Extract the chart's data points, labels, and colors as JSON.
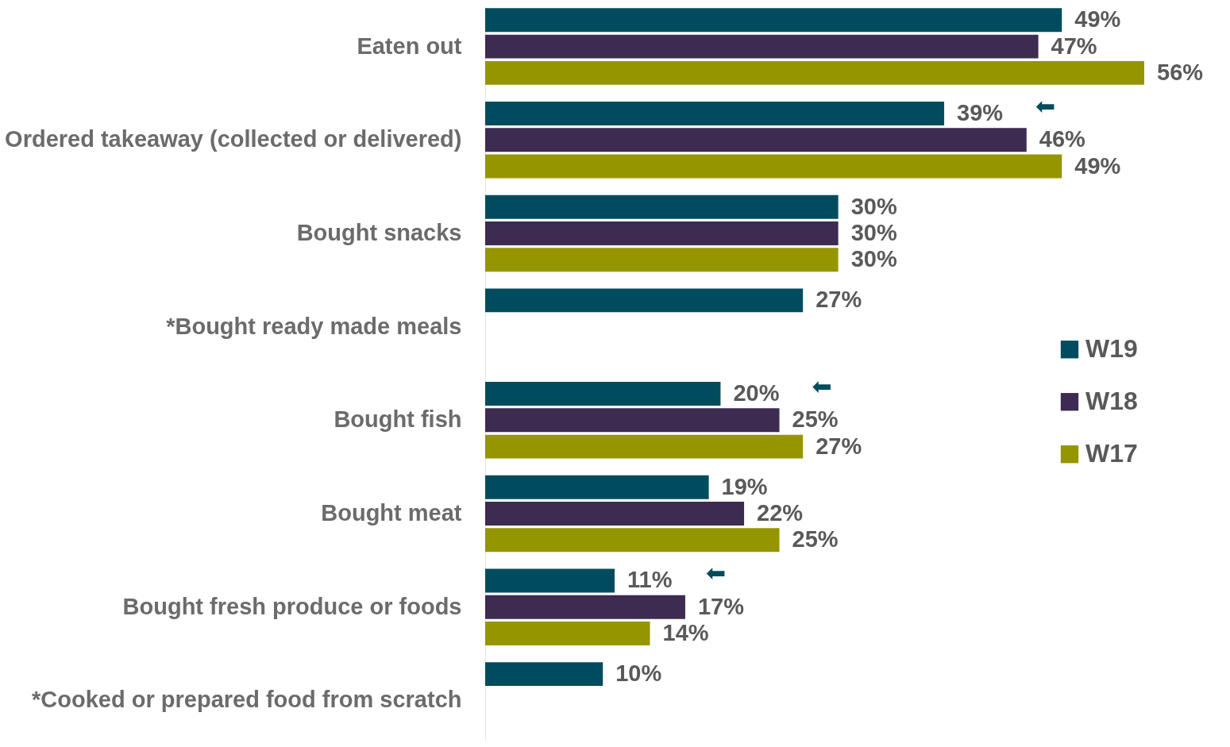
{
  "chart_data": {
    "type": "bar",
    "orientation": "horizontal",
    "categories": [
      "Eaten out",
      "Ordered takeaway (collected or delivered)",
      "Bought snacks",
      "*Bought ready made meals",
      "Bought fish",
      "Bought meat",
      "Bought fresh produce or foods",
      "*Cooked or prepared food from scratch"
    ],
    "series": [
      {
        "name": "W19",
        "color": "#004c5e",
        "values": [
          49,
          39,
          30,
          27,
          20,
          19,
          11,
          10
        ],
        "value_labels": [
          "49%",
          "39%",
          "30%",
          "27%",
          "20%",
          "19%",
          "11%",
          "10%"
        ]
      },
      {
        "name": "W18",
        "color": "#3d2b52",
        "values": [
          47,
          46,
          30,
          null,
          25,
          22,
          17,
          null
        ],
        "value_labels": [
          "47%",
          "46%",
          "30%",
          null,
          "25%",
          "22%",
          "17%",
          null
        ]
      },
      {
        "name": "W17",
        "color": "#959500",
        "values": [
          56,
          49,
          30,
          null,
          27,
          25,
          14,
          null
        ],
        "value_labels": [
          "56%",
          "49%",
          "30%",
          null,
          "27%",
          "25%",
          "14%",
          null
        ]
      }
    ],
    "annotations": [
      "⬅",
      "⬅",
      "⬅"
    ],
    "legend": "right",
    "grid": false,
    "tick_labels": "y"
  }
}
